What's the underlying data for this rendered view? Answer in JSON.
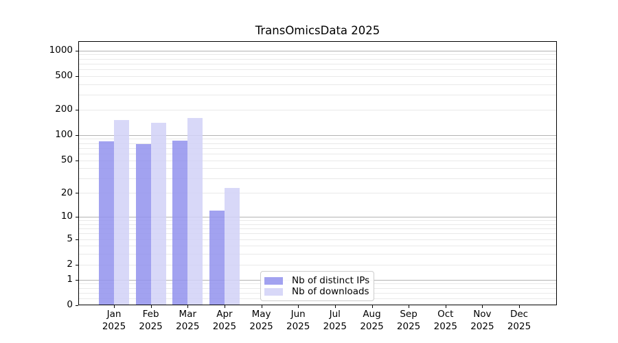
{
  "title": "TransOmicsData 2025",
  "legend": {
    "items": [
      {
        "label": "Nb of distinct IPs",
        "color": "#9292ed"
      },
      {
        "label": "Nb of downloads",
        "color": "#d1d1f7"
      }
    ]
  },
  "axes": {
    "y_ticks": [
      0,
      1,
      2,
      5,
      10,
      20,
      50,
      100,
      200,
      500,
      1000
    ],
    "x_months": [
      "Jan",
      "Feb",
      "Mar",
      "Apr",
      "May",
      "Jun",
      "Jul",
      "Aug",
      "Sep",
      "Oct",
      "Nov",
      "Dec"
    ],
    "year": "2025"
  },
  "colors": {
    "bar_distinct_ips": "#9292ed",
    "bar_downloads": "#d1d1f7",
    "grid_major": "#b2b2b2",
    "grid_minor": "#e9e9e9",
    "spine": "#000000"
  },
  "chart_data": {
    "type": "bar",
    "title": "TransOmicsData 2025",
    "categories": [
      "Jan 2025",
      "Feb 2025",
      "Mar 2025",
      "Apr 2025",
      "May 2025",
      "Jun 2025",
      "Jul 2025",
      "Aug 2025",
      "Sep 2025",
      "Oct 2025",
      "Nov 2025",
      "Dec 2025"
    ],
    "series": [
      {
        "name": "Nb of distinct IPs",
        "color": "#9292ed",
        "values": [
          84,
          78,
          85,
          12,
          0,
          0,
          0,
          0,
          0,
          0,
          0,
          0
        ]
      },
      {
        "name": "Nb of downloads",
        "color": "#d1d1f7",
        "values": [
          150,
          140,
          160,
          23,
          0,
          0,
          0,
          0,
          0,
          0,
          0,
          0
        ]
      }
    ],
    "xlabel": "",
    "ylabel": "",
    "yscale": "log10(value+1)",
    "yticks": [
      0,
      1,
      2,
      5,
      10,
      20,
      50,
      100,
      200,
      500,
      1000
    ],
    "ylim": [
      0,
      1320
    ],
    "grid": "horizontal, major and minor",
    "legend_position": "lower center-left inside plot"
  }
}
